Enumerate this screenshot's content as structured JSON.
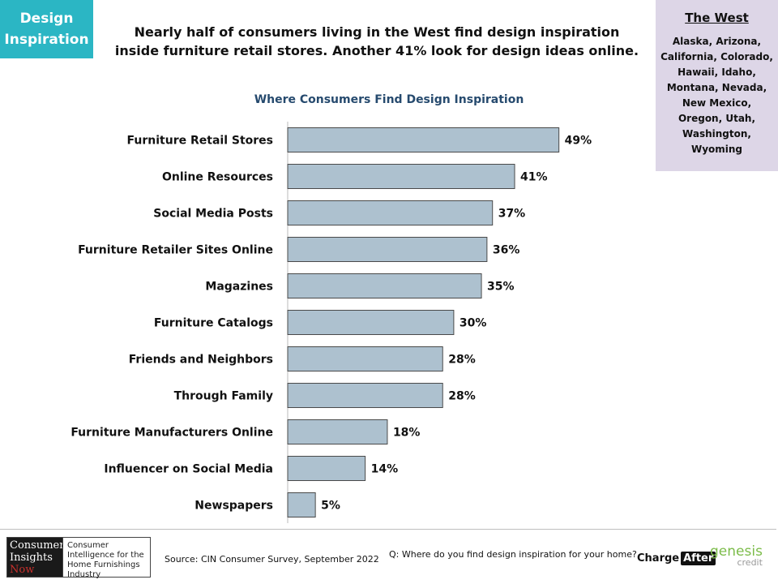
{
  "badge": {
    "line1": "Design",
    "line2": "Inspiration"
  },
  "headline": {
    "line1": "Nearly half of consumers living in the West find design inspiration",
    "line2": "inside furniture retail stores. Another 41% look for design ideas online."
  },
  "region": {
    "title": "The West",
    "states": "Alaska, Arizona, California, Colorado, Hawaii, Idaho, Montana, Nevada, New Mexico, Oregon, Utah, Washington, Wyoming"
  },
  "chart_data": {
    "type": "bar",
    "orientation": "horizontal",
    "title": "Where Consumers Find Design Inspiration",
    "categories": [
      "Furniture Retail Stores",
      "Online Resources",
      "Social Media Posts",
      "Furniture Retailer Sites Online",
      "Magazines",
      "Furniture Catalogs",
      "Friends and Neighbors",
      "Through Family",
      "Furniture Manufacturers Online",
      "Influencer on Social Media",
      "Newspapers"
    ],
    "values": [
      49,
      41,
      37,
      36,
      35,
      30,
      28,
      28,
      18,
      14,
      5
    ],
    "value_labels": [
      "49%",
      "41%",
      "37%",
      "36%",
      "35%",
      "30%",
      "28%",
      "28%",
      "18%",
      "14%",
      "5%"
    ],
    "unit": "%",
    "bar_color": "#adc1cf",
    "xlim": [
      0,
      60
    ],
    "grid": false,
    "legend": "none"
  },
  "footer": {
    "logo_left": [
      "Consumer",
      "Insights",
      "Now"
    ],
    "logo_right": "Consumer Intelligence for the Home Furnishings Industry",
    "source": "Source: CIN Consumer Survey, September  2022",
    "question": "Q: Where do you find design inspiration for your home?",
    "chargeafter": {
      "charge": "Charge",
      "after": "After"
    },
    "genesis": {
      "name": "genesis",
      "credit": "credit"
    }
  },
  "colors": {
    "teal": "#2bb6c4",
    "lavender": "#ddd6e7",
    "title_blue": "#264a6e"
  }
}
